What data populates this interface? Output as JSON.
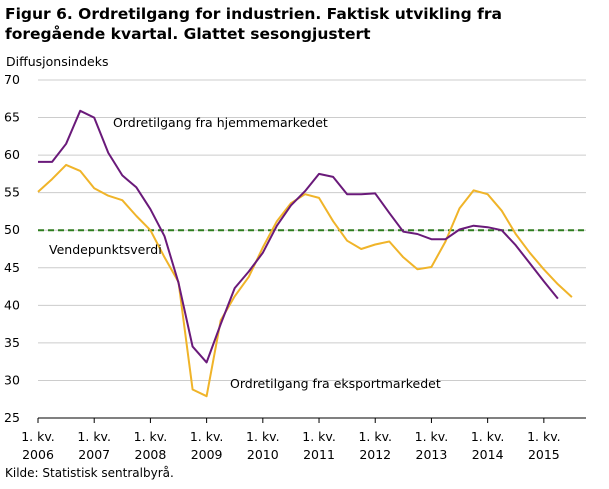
{
  "figure": {
    "title": "Figur 6. Ordretilgang for industrien. Faktisk utvikling fra foregående kvartal. Glattet sesongjustert",
    "source": "Kilde: Statistisk sentralbyrå."
  },
  "colors": {
    "purple": "#6a1a7a",
    "yellow": "#f0b429",
    "reference": "#2e7d1e",
    "grid": "#cccccc"
  },
  "chart_data": {
    "type": "line",
    "ylabel": "Diffusjonsindeks",
    "ylim": [
      25,
      70
    ],
    "yticks": [
      25,
      30,
      35,
      40,
      45,
      50,
      55,
      60,
      65,
      70
    ],
    "grid": "horizontal",
    "x_quarters": [
      "2006Q1",
      "2006Q2",
      "2006Q3",
      "2006Q4",
      "2007Q1",
      "2007Q2",
      "2007Q3",
      "2007Q4",
      "2008Q1",
      "2008Q2",
      "2008Q3",
      "2008Q4",
      "2009Q1",
      "2009Q2",
      "2009Q3",
      "2009Q4",
      "2010Q1",
      "2010Q2",
      "2010Q3",
      "2010Q4",
      "2011Q1",
      "2011Q2",
      "2011Q3",
      "2011Q4",
      "2012Q1",
      "2012Q2",
      "2012Q3",
      "2012Q4",
      "2013Q1",
      "2013Q2",
      "2013Q3",
      "2013Q4",
      "2014Q1",
      "2014Q2",
      "2014Q3",
      "2014Q4",
      "2015Q1",
      "2015Q2",
      "2015Q3",
      "2015Q4"
    ],
    "xtick_labels": [
      {
        "line1": "1. kv.",
        "line2": "2006",
        "index": 0
      },
      {
        "line1": "1. kv.",
        "line2": "2007",
        "index": 4
      },
      {
        "line1": "1. kv.",
        "line2": "2008",
        "index": 8
      },
      {
        "line1": "1. kv.",
        "line2": "2009",
        "index": 12
      },
      {
        "line1": "1. kv.",
        "line2": "2010",
        "index": 16
      },
      {
        "line1": "1. kv.",
        "line2": "2011",
        "index": 20
      },
      {
        "line1": "1. kv.",
        "line2": "2012",
        "index": 24
      },
      {
        "line1": "1. kv.",
        "line2": "2013",
        "index": 28
      },
      {
        "line1": "1. kv.",
        "line2": "2014",
        "index": 32
      },
      {
        "line1": "1. kv.",
        "line2": "2015",
        "index": 36
      }
    ],
    "reference_line": {
      "value": 50,
      "label": "Vendepunktsverdi",
      "style": "dashed"
    },
    "series": [
      {
        "name": "Ordretilgang  fra hjemmemarkedet",
        "color": "purple",
        "values": [
          59.1,
          59.1,
          61.5,
          65.9,
          65.0,
          60.3,
          57.3,
          55.7,
          52.8,
          49.2,
          43.0,
          34.5,
          32.4,
          37.5,
          42.3,
          44.5,
          47.0,
          50.6,
          53.3,
          55.2,
          57.5,
          57.1,
          54.8,
          54.8,
          54.9,
          52.3,
          49.8,
          49.5,
          48.8,
          48.8,
          50.1,
          50.6,
          50.4,
          50.0,
          48.0,
          45.6,
          43.2,
          40.9
        ]
      },
      {
        "name": "Ordretilgang  fra eksportmarkedet",
        "color": "yellow",
        "values": [
          55.1,
          56.8,
          58.7,
          57.9,
          55.6,
          54.6,
          54.0,
          51.9,
          50.0,
          46.4,
          43.1,
          28.8,
          27.9,
          38.0,
          41.2,
          43.8,
          47.7,
          51.2,
          53.6,
          54.8,
          54.3,
          51.2,
          48.6,
          47.5,
          48.1,
          48.5,
          46.4,
          44.8,
          45.1,
          48.5,
          52.9,
          55.3,
          54.8,
          52.6,
          49.5,
          47.0,
          44.8,
          42.8,
          41.1
        ]
      }
    ],
    "annotations": [
      {
        "text": "Ordretilgang  fra hjemmemarkedet",
        "series": 0
      },
      {
        "text": "Ordretilgang  fra eksportmarkedet",
        "series": 1
      },
      {
        "text": "Vendepunktsverdi",
        "series": "reference"
      }
    ]
  }
}
